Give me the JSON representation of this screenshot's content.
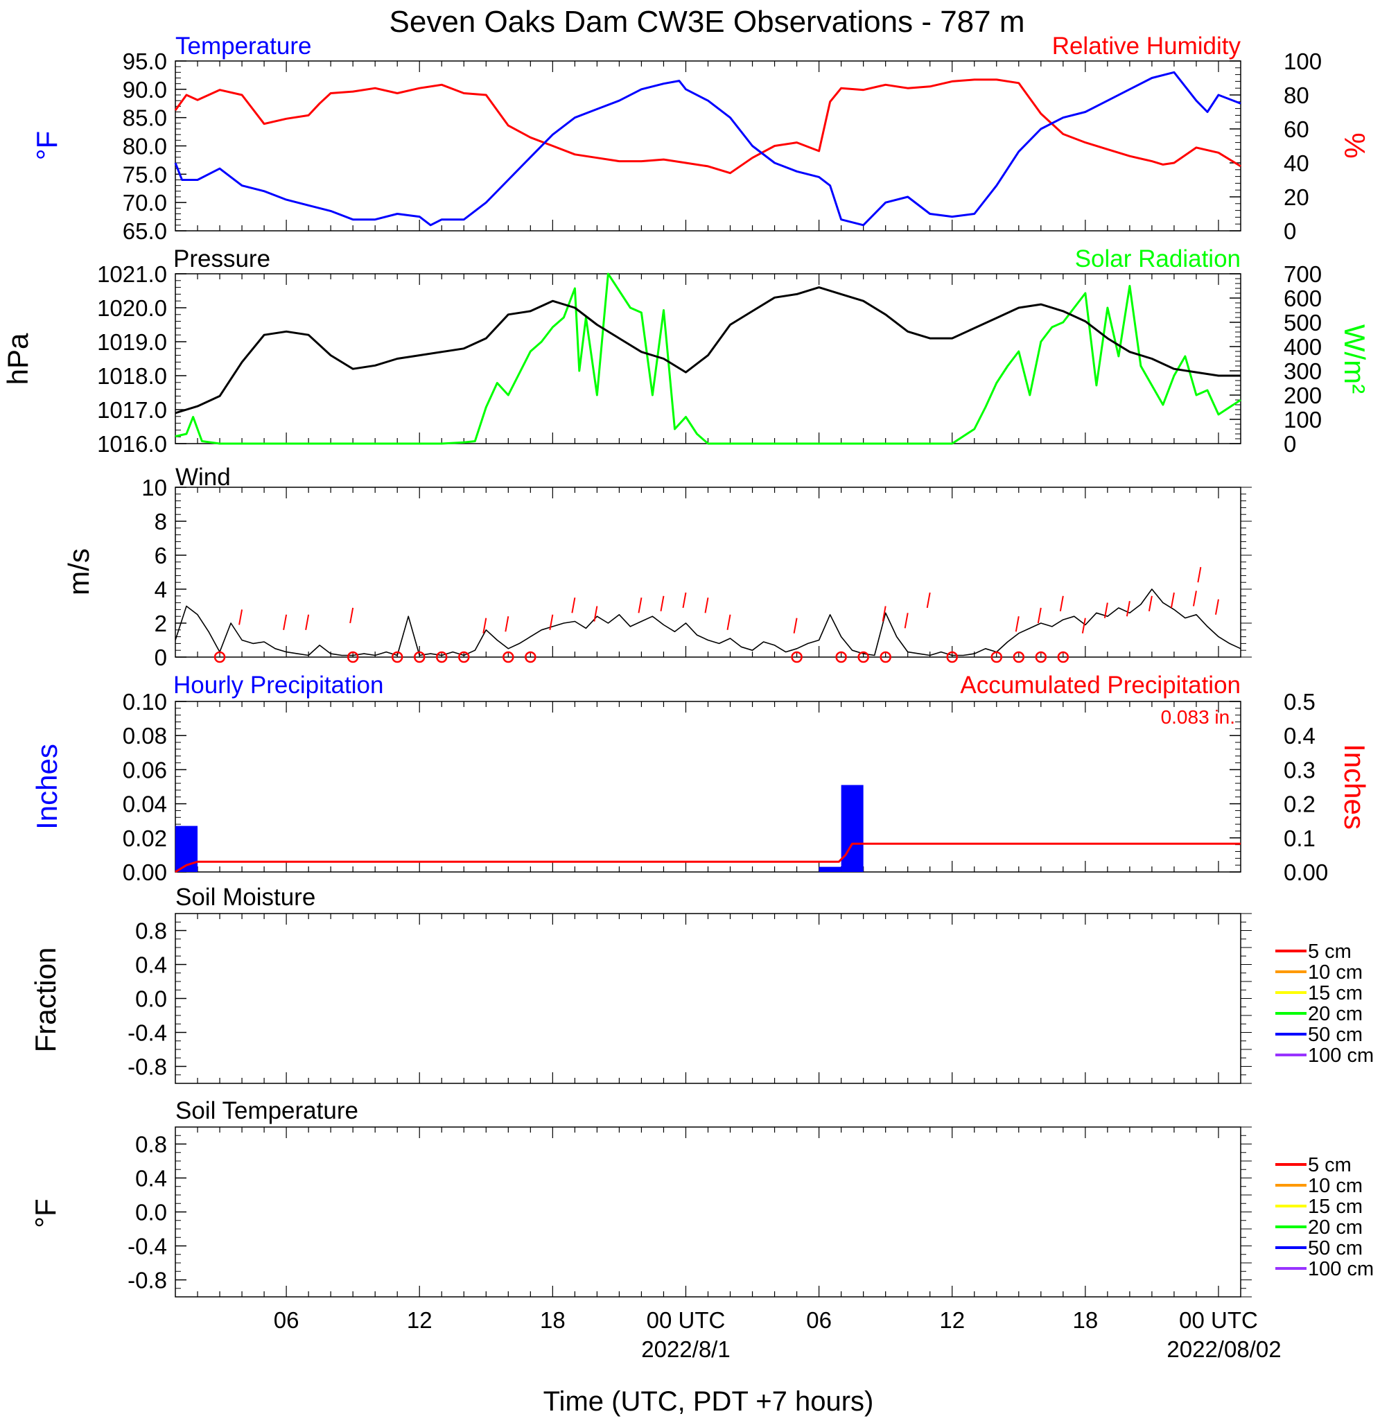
{
  "title": "Seven Oaks Dam CW3E Observations - 787 m",
  "xlabel": "Time (UTC, PDT +7 hours)",
  "x_ticks": [
    {
      "hour": 5,
      "label": "06"
    },
    {
      "hour": 11,
      "label": "12"
    },
    {
      "hour": 17,
      "label": "18"
    },
    {
      "hour": 23,
      "label": "00 UTC",
      "date": "2022/8/1"
    },
    {
      "hour": 29,
      "label": "06"
    },
    {
      "hour": 35,
      "label": "12"
    },
    {
      "hour": 41,
      "label": "18"
    },
    {
      "hour": 47,
      "label": "00 UTC",
      "date": "2022/08/02"
    }
  ],
  "colors": {
    "temperature": "#0000ff",
    "humidity": "#ff0000",
    "pressure": "#000000",
    "solar": "#00ff00",
    "wind": "#000000",
    "gust": "#ff0000",
    "hourly_precip": "#0000ff",
    "accum_precip": "#ff0000"
  },
  "chart_data": [
    {
      "id": "temperature_humidity",
      "type": "line",
      "title_left": "Temperature",
      "title_right": "Relative Humidity",
      "ylabel_left": "°F",
      "ylabel_right": "%",
      "ylim_left": [
        65,
        95
      ],
      "ylim_right": [
        0,
        100
      ],
      "yticks_left": [
        "95.0",
        "90.0",
        "85.0",
        "80.0",
        "75.0",
        "70.0",
        "65.0"
      ],
      "yticks_right": [
        "100",
        "80",
        "60",
        "40",
        "20",
        "0"
      ],
      "x_range_hours": [
        0,
        48
      ],
      "series": [
        {
          "name": "Temperature",
          "axis": "left",
          "x": [
            0,
            0.3,
            1,
            2,
            3,
            4,
            5,
            6,
            7,
            8,
            9,
            10,
            11,
            11.5,
            12,
            13,
            14,
            15,
            16,
            17,
            18,
            19,
            20,
            21,
            22,
            22.7,
            23,
            24,
            25,
            26,
            27,
            28,
            29,
            29.5,
            30,
            31,
            32,
            33,
            34,
            35,
            36,
            37,
            38,
            39,
            40,
            41,
            42,
            43,
            44,
            45,
            46,
            46.5,
            47,
            48
          ],
          "y": [
            77,
            74,
            74,
            76,
            73,
            72,
            70.5,
            69.5,
            68.5,
            67,
            67,
            68,
            67.5,
            66,
            67,
            67,
            70,
            74,
            78,
            82,
            85,
            86.5,
            88,
            90,
            91,
            91.5,
            90,
            88,
            85,
            80,
            77,
            75.5,
            74.5,
            73,
            67,
            66,
            70,
            71,
            68,
            67.5,
            68,
            73,
            79,
            83,
            85,
            86,
            88,
            90,
            92,
            93,
            88,
            86,
            89,
            87.5
          ]
        },
        {
          "name": "Relative Humidity",
          "axis": "right",
          "x": [
            0,
            0.5,
            1,
            2,
            3,
            4,
            5,
            6,
            6.5,
            7,
            8,
            9,
            10,
            11,
            12,
            13,
            14,
            15,
            16,
            17,
            18,
            19,
            20,
            21,
            22,
            23,
            24,
            25,
            26,
            27,
            28,
            29,
            29.5,
            30,
            31,
            32,
            33,
            34,
            35,
            36,
            37,
            38,
            39,
            40,
            41,
            42,
            43,
            44,
            44.5,
            45,
            46,
            47,
            48
          ],
          "y": [
            71,
            80,
            77,
            83,
            80,
            63,
            66,
            68,
            75,
            81,
            82,
            84,
            81,
            84,
            86,
            81,
            80,
            62,
            55,
            50,
            45,
            43,
            41,
            41,
            42,
            40,
            38,
            34,
            43,
            50,
            52,
            47,
            76,
            84,
            83,
            86,
            84,
            85,
            88,
            89,
            89,
            87,
            69,
            57,
            52,
            48,
            44,
            41,
            39,
            40,
            49,
            46,
            38
          ]
        }
      ]
    },
    {
      "id": "pressure_solar",
      "type": "line",
      "title_left": "Pressure",
      "title_right": "Solar Radiation",
      "ylabel_left": "hPa",
      "ylabel_right": "W/m²",
      "ylim_left": [
        1016,
        1021
      ],
      "ylim_right": [
        0,
        700
      ],
      "yticks_left": [
        "1021.0",
        "1020.0",
        "1019.0",
        "1018.0",
        "1017.0",
        "1016.0"
      ],
      "yticks_right": [
        "700",
        "600",
        "500",
        "400",
        "300",
        "200",
        "100",
        "0"
      ],
      "x_range_hours": [
        0,
        48
      ],
      "series": [
        {
          "name": "Pressure",
          "axis": "left",
          "x": [
            0,
            1,
            2,
            3,
            4,
            5,
            6,
            7,
            8,
            9,
            10,
            11,
            12,
            13,
            14,
            15,
            16,
            17,
            18,
            19,
            20,
            21,
            22,
            23,
            24,
            25,
            26,
            27,
            28,
            29,
            30,
            31,
            32,
            33,
            34,
            35,
            36,
            37,
            38,
            39,
            40,
            41,
            42,
            43,
            44,
            45,
            46,
            47,
            48
          ],
          "y": [
            1016.9,
            1017.1,
            1017.4,
            1018.4,
            1019.2,
            1019.3,
            1019.2,
            1018.6,
            1018.2,
            1018.3,
            1018.5,
            1018.6,
            1018.7,
            1018.8,
            1019.1,
            1019.8,
            1019.9,
            1020.2,
            1020,
            1019.5,
            1019.1,
            1018.7,
            1018.5,
            1018.1,
            1018.6,
            1019.5,
            1019.9,
            1020.3,
            1020.4,
            1020.6,
            1020.4,
            1020.2,
            1019.8,
            1019.3,
            1019.1,
            1019.1,
            1019.4,
            1019.7,
            1020,
            1020.1,
            1019.9,
            1019.6,
            1019.1,
            1018.7,
            1018.5,
            1018.2,
            1018.1,
            1018,
            1018
          ],
          "note": ""
        },
        {
          "name": "Solar Radiation",
          "axis": "right",
          "x": [
            0,
            0.5,
            0.8,
            1.2,
            2,
            3,
            4,
            5,
            6,
            7,
            8,
            9,
            10,
            11,
            12,
            13,
            13.5,
            14,
            14.5,
            15,
            16,
            16.5,
            17,
            17.5,
            18,
            18.2,
            18.5,
            19,
            19.5,
            20,
            20.5,
            21,
            21.5,
            22,
            22.5,
            23,
            23.5,
            24,
            25,
            26,
            27,
            28,
            29,
            30,
            31,
            32,
            33,
            34,
            35,
            35.5,
            36,
            36.5,
            37,
            37.5,
            38,
            38.5,
            39,
            39.5,
            40,
            40.5,
            41,
            41.5,
            42,
            42.5,
            43,
            43.5,
            44,
            44.5,
            45,
            45.5,
            46,
            46.5,
            47,
            48
          ],
          "y": [
            30,
            40,
            110,
            10,
            0,
            0,
            0,
            0,
            0,
            0,
            0,
            0,
            0,
            0,
            0,
            5,
            10,
            150,
            250,
            200,
            380,
            420,
            480,
            520,
            640,
            300,
            520,
            200,
            700,
            630,
            560,
            540,
            200,
            550,
            60,
            110,
            40,
            0,
            0,
            0,
            0,
            0,
            0,
            0,
            0,
            0,
            0,
            0,
            0,
            30,
            60,
            150,
            250,
            320,
            380,
            200,
            420,
            480,
            500,
            560,
            620,
            240,
            560,
            360,
            650,
            320,
            240,
            160,
            280,
            360,
            200,
            220,
            120,
            180
          ]
        }
      ]
    },
    {
      "id": "wind",
      "type": "line",
      "title_left": "Wind",
      "ylabel_left": "m/s",
      "ylim_left": [
        0,
        10
      ],
      "yticks_left": [
        "10",
        "8",
        "6",
        "4",
        "2",
        "0"
      ],
      "x_range_hours": [
        0,
        48
      ],
      "series": [
        {
          "name": "Wind speed",
          "axis": "left",
          "x": [
            0,
            0.5,
            1,
            1.5,
            2,
            2.5,
            3,
            3.5,
            4,
            4.5,
            5,
            5.5,
            6,
            6.5,
            7,
            7.5,
            8,
            8.5,
            9,
            9.5,
            10,
            10.5,
            11,
            11.5,
            12,
            12.5,
            13,
            13.5,
            14,
            14.5,
            15,
            15.5,
            16,
            16.5,
            17,
            17.5,
            18,
            18.5,
            19,
            19.5,
            20,
            20.5,
            21,
            21.5,
            22,
            22.5,
            23,
            23.5,
            24,
            24.5,
            25,
            25.5,
            26,
            26.5,
            27,
            27.5,
            28,
            28.5,
            29,
            29.5,
            30,
            30.5,
            31,
            31.5,
            32,
            32.5,
            33,
            33.5,
            34,
            34.5,
            35,
            35.5,
            36,
            36.5,
            37,
            37.5,
            38,
            38.5,
            39,
            39.5,
            40,
            40.5,
            41,
            41.5,
            42,
            42.5,
            43,
            43.5,
            44,
            44.5,
            45,
            45.5,
            46,
            46.5,
            47,
            47.5,
            48
          ],
          "y": [
            1,
            3,
            2.5,
            1.5,
            0.3,
            2,
            1,
            0.8,
            0.9,
            0.5,
            0.3,
            0.2,
            0.1,
            0.7,
            0.2,
            0.1,
            0.1,
            0.2,
            0.1,
            0.3,
            0.1,
            2.4,
            0.1,
            0.2,
            0.1,
            0.3,
            0.1,
            0.4,
            1.6,
            1,
            0.5,
            0.8,
            1.2,
            1.6,
            1.8,
            2,
            2.1,
            1.7,
            2.4,
            2,
            2.5,
            1.8,
            2.1,
            2.4,
            1.9,
            1.5,
            2,
            1.3,
            1,
            0.8,
            1.1,
            0.6,
            0.4,
            0.9,
            0.7,
            0.3,
            0.5,
            0.8,
            1,
            2.5,
            1.2,
            0.4,
            0.2,
            0.1,
            2.6,
            1.2,
            0.3,
            0.2,
            0.1,
            0.3,
            0.1,
            0.1,
            0.2,
            0.5,
            0.3,
            0.9,
            1.4,
            1.7,
            2,
            1.8,
            2.2,
            2.4,
            1.9,
            2.6,
            2.4,
            2.9,
            2.6,
            3.1,
            4,
            3.2,
            2.8,
            2.3,
            2.5,
            1.8,
            1.2,
            0.8,
            0.5
          ]
        },
        {
          "name": "Wind gust",
          "axis": "left",
          "x": [
            3,
            5,
            6,
            8,
            14,
            15,
            17,
            18,
            19,
            21,
            22,
            23,
            24,
            25,
            28,
            32,
            33,
            34,
            38,
            39,
            40,
            41,
            42,
            43,
            44,
            45,
            46,
            46.2,
            47
          ],
          "y": [
            2.8,
            2.5,
            2.5,
            2.9,
            2.3,
            2.4,
            2.5,
            3.5,
            3,
            3.5,
            3.6,
            3.8,
            3.5,
            2.5,
            2.3,
            3,
            2.6,
            3.8,
            2.4,
            2.9,
            3.6,
            2.3,
            3.2,
            3.3,
            3.6,
            3.8,
            3.9,
            5.3,
            3.4
          ]
        }
      ],
      "calm_markers_hours": [
        2,
        8,
        10,
        11,
        12,
        13,
        15,
        16,
        28,
        30,
        31,
        32,
        35,
        37,
        38,
        39,
        40
      ]
    },
    {
      "id": "precipitation",
      "type": "bar",
      "title_left": "Hourly Precipitation",
      "title_right": "Accumulated Precipitation",
      "annotation": "0.083 in.",
      "ylabel_left": "Inches",
      "ylabel_right": "Inches",
      "ylim_left": [
        0,
        0.1
      ],
      "ylim_right": [
        0,
        0.5
      ],
      "yticks_left": [
        "0.10",
        "0.08",
        "0.06",
        "0.04",
        "0.02",
        "0.00"
      ],
      "yticks_right": [
        "0.5",
        "0.4",
        "0.3",
        "0.2",
        "0.1",
        "0.00"
      ],
      "x_range_hours": [
        0,
        48
      ],
      "bars": [
        {
          "start_hour": 0,
          "value": 0.027
        },
        {
          "start_hour": 29,
          "value": 0.003
        },
        {
          "start_hour": 30,
          "value": 0.051
        }
      ],
      "accumulated": {
        "x": [
          0,
          0.5,
          1,
          2,
          29,
          29.9,
          30.2,
          30.5,
          31,
          48
        ],
        "y": [
          0,
          0.02,
          0.03,
          0.03,
          0.03,
          0.03,
          0.05,
          0.083,
          0.083,
          0.083
        ]
      }
    },
    {
      "id": "soil_moisture",
      "type": "line",
      "title_left": "Soil Moisture",
      "ylabel_left": "Fraction",
      "ylim_left": [
        -1,
        1
      ],
      "yticks_left": [
        "0.8",
        "0.4",
        "0.0",
        "-0.4",
        "-0.8"
      ],
      "legend": [
        {
          "label": "5 cm",
          "color": "#ff0000"
        },
        {
          "label": "10 cm",
          "color": "#ff9900"
        },
        {
          "label": "15 cm",
          "color": "#ffff00"
        },
        {
          "label": "20 cm",
          "color": "#00ff00"
        },
        {
          "label": "50 cm",
          "color": "#0000ff"
        },
        {
          "label": "100 cm",
          "color": "#9933ff"
        }
      ],
      "series": []
    },
    {
      "id": "soil_temperature",
      "type": "line",
      "title_left": "Soil Temperature",
      "ylabel_left": "°F",
      "ylim_left": [
        -1,
        1
      ],
      "yticks_left": [
        "0.8",
        "0.4",
        "0.0",
        "-0.4",
        "-0.8"
      ],
      "legend": [
        {
          "label": "5 cm",
          "color": "#ff0000"
        },
        {
          "label": "10 cm",
          "color": "#ff9900"
        },
        {
          "label": "15 cm",
          "color": "#ffff00"
        },
        {
          "label": "20 cm",
          "color": "#00ff00"
        },
        {
          "label": "50 cm",
          "color": "#0000ff"
        },
        {
          "label": "100 cm",
          "color": "#9933ff"
        }
      ],
      "series": []
    }
  ]
}
